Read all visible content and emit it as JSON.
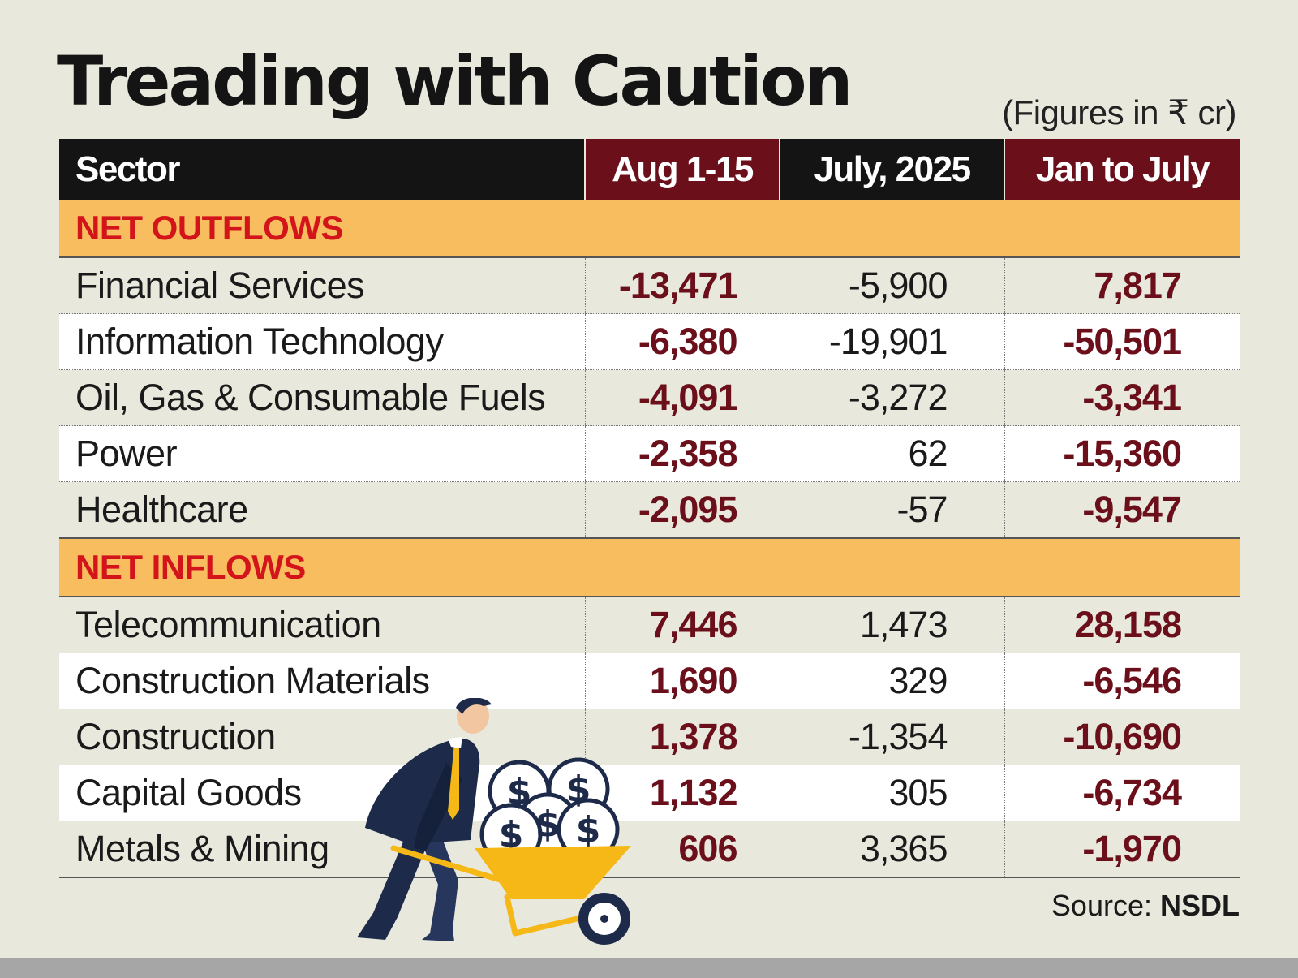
{
  "header": {
    "title": "Treading with Caution",
    "units_note": "(Figures in ₹ cr)"
  },
  "source": {
    "label": "Source:",
    "name": "NSDL"
  },
  "colors": {
    "background": "#e8e8dd",
    "header_dark": "#141414",
    "header_maroon": "#6b0f1a",
    "group_band": "#f8bd5f",
    "group_text": "#d3141b",
    "value_maroon": "#6b0f1a",
    "wheelbarrow": "#f5b816",
    "suit": "#1d2a4a"
  },
  "chart_data": {
    "type": "table",
    "title": "Treading with Caution",
    "subtitle": "(Figures in ₹ cr)",
    "columns": [
      "Sector",
      "Aug 1-15",
      "July, 2025",
      "Jan to July"
    ],
    "groups": [
      {
        "name": "NET OUTFLOWS",
        "rows": [
          {
            "sector": "Financial Services",
            "aug": "-13,471",
            "jul": "-5,900",
            "jan": "7,817"
          },
          {
            "sector": "Information Technology",
            "aug": "-6,380",
            "jul": "-19,901",
            "jan": "-50,501"
          },
          {
            "sector": "Oil, Gas & Consumable Fuels",
            "aug": "-4,091",
            "jul": "-3,272",
            "jan": "-3,341"
          },
          {
            "sector": "Power",
            "aug": "-2,358",
            "jul": "62",
            "jan": "-15,360"
          },
          {
            "sector": "Healthcare",
            "aug": "-2,095",
            "jul": "-57",
            "jan": "-9,547"
          }
        ]
      },
      {
        "name": "NET INFLOWS",
        "rows": [
          {
            "sector": "Telecommunication",
            "aug": "7,446",
            "jul": "1,473",
            "jan": "28,158"
          },
          {
            "sector": "Construction Materials",
            "aug": "1,690",
            "jul": "329",
            "jan": "-6,546"
          },
          {
            "sector": "Construction",
            "aug": "1,378",
            "jul": "-1,354",
            "jan": "-10,690"
          },
          {
            "sector": "Capital Goods",
            "aug": "1,132",
            "jul": "305",
            "jan": "-6,734"
          },
          {
            "sector": "Metals & Mining",
            "aug": "606",
            "jul": "3,365",
            "jan": "-1,970"
          }
        ]
      }
    ]
  }
}
